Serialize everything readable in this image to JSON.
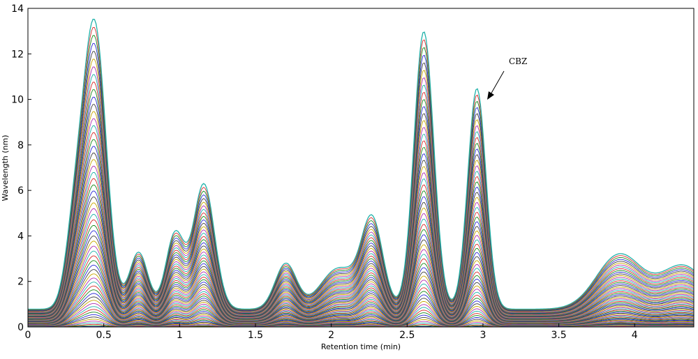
{
  "chart_data": {
    "type": "line",
    "title": "",
    "xlabel": "Retention time (min)",
    "ylabel": "Wavelength (nm)",
    "xlim": [
      0,
      4.39
    ],
    "ylim": [
      0,
      14
    ],
    "grid": false,
    "legend": "none",
    "x_ticks": [
      {
        "value": 0,
        "label": "0"
      },
      {
        "value": 0.5,
        "label": "0.5"
      },
      {
        "value": 1,
        "label": "1"
      },
      {
        "value": 1.5,
        "label": "1.5"
      },
      {
        "value": 2,
        "label": "2"
      },
      {
        "value": 2.5,
        "label": "2.5"
      },
      {
        "value": 3,
        "label": "3"
      },
      {
        "value": 3.5,
        "label": "3.5"
      },
      {
        "value": 4,
        "label": "4"
      }
    ],
    "y_ticks": [
      {
        "value": 0,
        "label": "0"
      },
      {
        "value": 2,
        "label": "2"
      },
      {
        "value": 4,
        "label": "4"
      },
      {
        "value": 6,
        "label": "6"
      },
      {
        "value": 8,
        "label": "8"
      },
      {
        "value": 10,
        "label": "10"
      },
      {
        "value": 12,
        "label": "12"
      },
      {
        "value": 14,
        "label": "14"
      }
    ],
    "annotation": {
      "text": "CBZ",
      "x": 3.0,
      "y": 10.0
    },
    "envelope": {
      "baseline": 0.78,
      "peaks": [
        {
          "center": 0.44,
          "height": 12.4,
          "width": 0.075
        },
        {
          "center": 0.31,
          "height": 3.4,
          "width": 0.06
        },
        {
          "center": 0.73,
          "height": 2.5,
          "width": 0.06
        },
        {
          "center": 0.97,
          "height": 3.3,
          "width": 0.06
        },
        {
          "center": 1.16,
          "height": 5.5,
          "width": 0.07
        },
        {
          "center": 1.7,
          "height": 2.0,
          "width": 0.07
        },
        {
          "center": 2.05,
          "height": 1.8,
          "width": 0.12
        },
        {
          "center": 2.27,
          "height": 3.8,
          "width": 0.07
        },
        {
          "center": 2.61,
          "height": 12.2,
          "width": 0.065
        },
        {
          "center": 2.96,
          "height": 9.7,
          "width": 0.06
        },
        {
          "center": 3.9,
          "height": 2.4,
          "width": 0.15
        },
        {
          "center": 4.32,
          "height": 1.9,
          "width": 0.15
        }
      ]
    },
    "series_count": 60,
    "series_colors": [
      "#2b2bd6",
      "#1a8a1a",
      "#d62b2b",
      "#20b2aa",
      "#b030b0",
      "#c8a800",
      "#404040"
    ]
  }
}
